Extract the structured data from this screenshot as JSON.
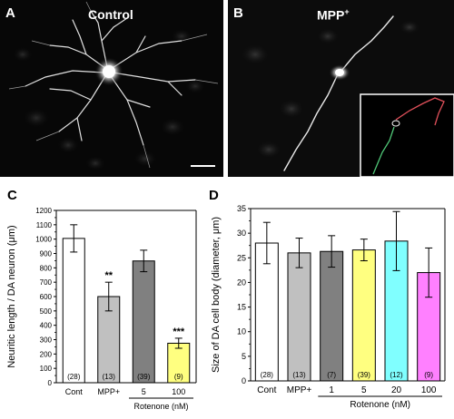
{
  "panel_a": {
    "letter": "A",
    "title": "Control"
  },
  "panel_b": {
    "letter": "B",
    "title": "MPP",
    "title_sup": "+"
  },
  "chart_data": [
    {
      "type": "bar",
      "panel": "C",
      "categories": [
        "Cont",
        "MPP+",
        "5",
        "100"
      ],
      "group_label": "Rotenone (nM)",
      "group_members": [
        "5",
        "100"
      ],
      "values": [
        1005,
        600,
        848,
        275
      ],
      "errors": [
        95,
        100,
        75,
        35
      ],
      "n_labels": [
        "(28)",
        "(13)",
        "(39)",
        "(9)"
      ],
      "significance": [
        "",
        "**",
        "",
        "***"
      ],
      "colors": [
        "#ffffff",
        "#c0c0c0",
        "#808080",
        "#ffff80"
      ],
      "ylabel": "Neuritic length / DA neuron (μm)",
      "ylim": [
        0,
        1200
      ],
      "yticks": [
        0,
        100,
        200,
        300,
        400,
        500,
        600,
        700,
        800,
        900,
        1000,
        1100,
        1200
      ]
    },
    {
      "type": "bar",
      "panel": "D",
      "categories": [
        "Cont",
        "MPP+",
        "1",
        "5",
        "20",
        "100"
      ],
      "group_label": "Rotenone (nM)",
      "group_members": [
        "1",
        "5",
        "20",
        "100"
      ],
      "values": [
        28,
        26,
        26.3,
        26.6,
        28.4,
        22
      ],
      "errors": [
        4.2,
        3,
        3.2,
        2.2,
        6,
        5
      ],
      "n_labels": [
        "(28)",
        "(13)",
        "(7)",
        "(39)",
        "(12)",
        "(9)"
      ],
      "colors": [
        "#ffffff",
        "#c0c0c0",
        "#808080",
        "#ffff80",
        "#80ffff",
        "#ff80ff"
      ],
      "ylabel": "Size of DA cell body (diameter, μm)",
      "ylim": [
        0,
        35
      ],
      "yticks": [
        0,
        5,
        10,
        15,
        20,
        25,
        30,
        35
      ]
    }
  ]
}
